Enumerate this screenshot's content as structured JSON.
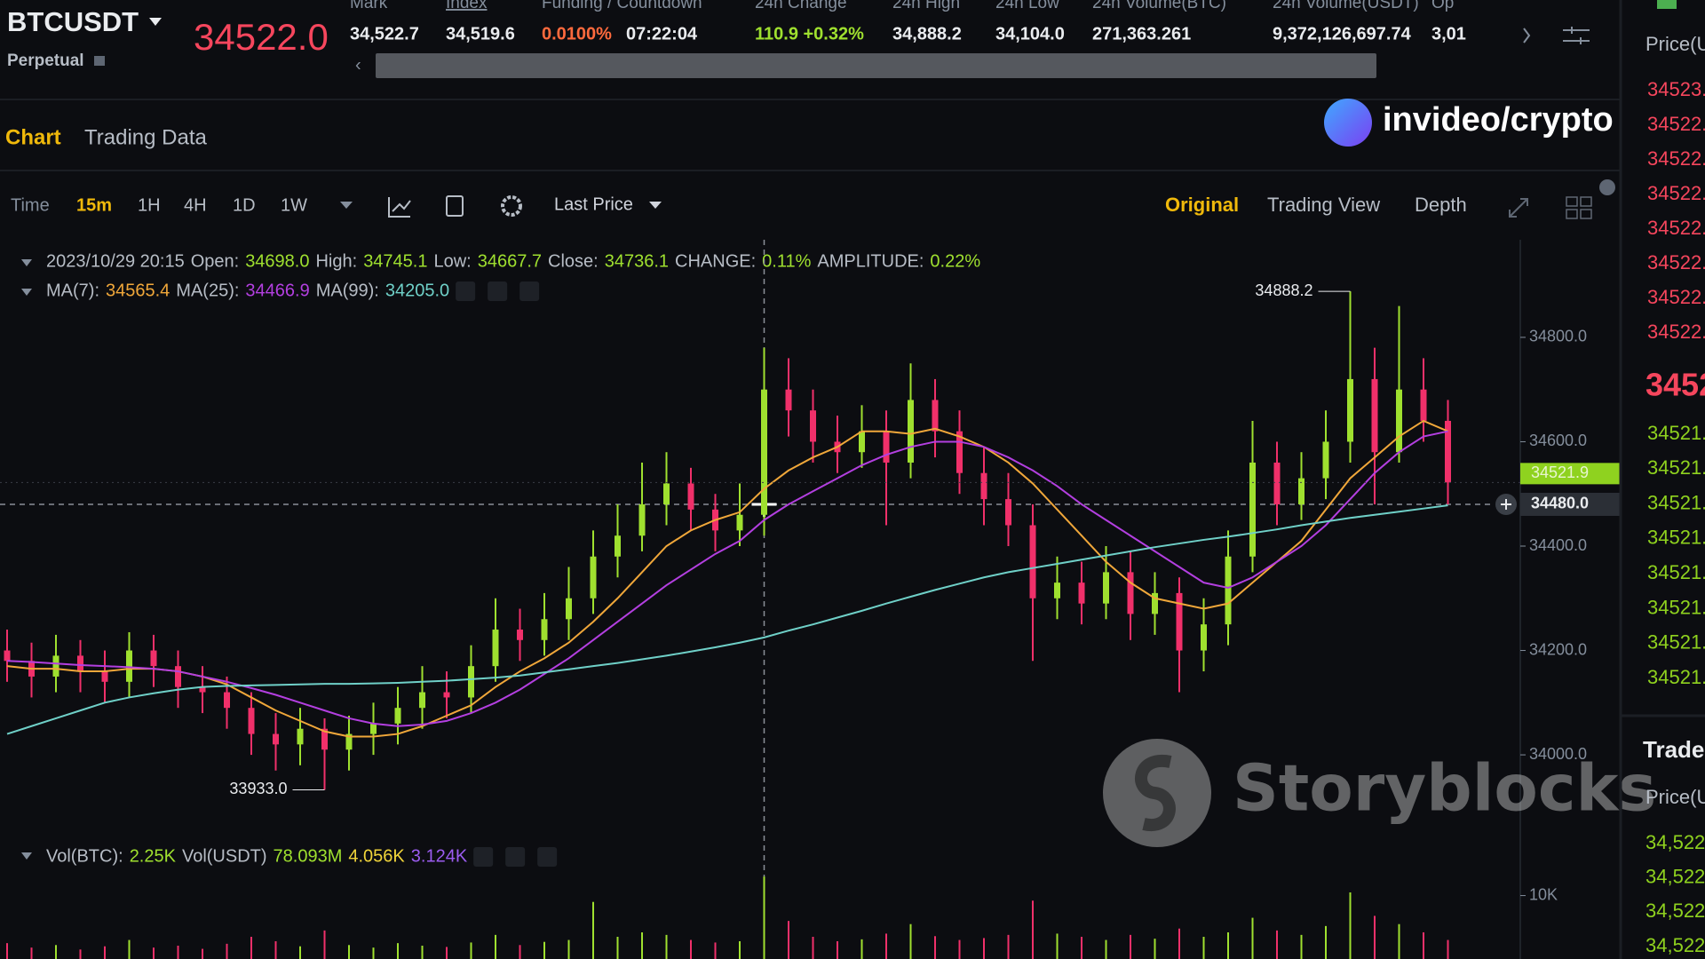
{
  "header": {
    "symbol": "BTCUSDT",
    "contract": "Perpetual",
    "last_price": "34522.0",
    "stats": [
      {
        "label": "Mark",
        "value": "34,522.7"
      },
      {
        "label": "Index",
        "value": "34,519.6"
      },
      {
        "label": "Funding / Countdown",
        "value": "0.0100%",
        "countdown": "07:22:04"
      },
      {
        "label": "24h Change",
        "value": "110.9 +0.32%"
      },
      {
        "label": "24h High",
        "value": "34,888.2"
      },
      {
        "label": "24h Low",
        "value": "34,104.0"
      },
      {
        "label": "24h Volume(BTC)",
        "value": "271,363.261"
      },
      {
        "label": "24h Volume(USDT)",
        "value": "9,372,126,697.74"
      },
      {
        "label": "Op",
        "value": "3,01"
      }
    ]
  },
  "tabs": [
    "Chart",
    "Trading Data"
  ],
  "watermarks": {
    "brand": "invideo/crypto",
    "stock": "Storyblocks"
  },
  "toolbar": {
    "intervals": [
      "Time",
      "15m",
      "1H",
      "4H",
      "1D",
      "1W"
    ],
    "price_type": "Last Price",
    "views": [
      "Original",
      "Trading View",
      "Depth"
    ]
  },
  "legend": {
    "time": "2023/10/29 20:15",
    "value_color": "#9fe02f",
    "fields": [
      {
        "label": "Open:",
        "value": "34698.0"
      },
      {
        "label": "High:",
        "value": "34745.1"
      },
      {
        "label": "Low:",
        "value": "34667.7"
      },
      {
        "label": "Close:",
        "value": "34736.1"
      },
      {
        "label": "CHANGE:",
        "value": "0.11%"
      },
      {
        "label": "AMPLITUDE:",
        "value": "0.22%"
      }
    ],
    "vol": [
      {
        "label": "Vol(BTC):",
        "value": "2.25K",
        "color": "#9fe02f"
      },
      {
        "label": "Vol(USDT)",
        "value": "78.093M",
        "color": "#9fe02f"
      },
      {
        "value": "4.056K",
        "color": "#f0d43a"
      },
      {
        "value": "3.124K",
        "color": "#9b5cf0"
      }
    ]
  },
  "chart_data": {
    "type": "candlestick",
    "up_color": "#9fe02f",
    "down_color": "#f0306a",
    "open": [
      34200,
      34180,
      34150,
      34190,
      34160,
      34140,
      34200,
      34170,
      34130,
      34120,
      34090,
      34040,
      34020,
      34050,
      34010,
      34040,
      34060,
      34090,
      34120,
      34110,
      34170,
      34240,
      34220,
      34260,
      34300,
      34380,
      34420,
      34480,
      34520,
      34470,
      34430,
      34460,
      34700,
      34660,
      34600,
      34580,
      34620,
      34560,
      34680,
      34620,
      34540,
      34490,
      34440,
      34300,
      34330,
      34290,
      34350,
      34270,
      34310,
      34200,
      34250,
      34380,
      34560,
      34480,
      34530,
      34600,
      34720,
      34580,
      34700,
      34640
    ],
    "high": [
      34240,
      34215,
      34230,
      34220,
      34200,
      34235,
      34230,
      34200,
      34170,
      34150,
      34120,
      34080,
      34090,
      34070,
      34075,
      34100,
      34130,
      34170,
      34160,
      34210,
      34300,
      34280,
      34310,
      34360,
      34430,
      34480,
      34560,
      34580,
      34550,
      34500,
      34520,
      34780,
      34760,
      34700,
      34650,
      34670,
      34660,
      34750,
      34720,
      34660,
      34590,
      34540,
      34480,
      34380,
      34370,
      34400,
      34390,
      34350,
      34340,
      34300,
      34430,
      34640,
      34600,
      34580,
      34660,
      34888.2,
      34780,
      34860,
      34760,
      34680
    ],
    "low": [
      34140,
      34110,
      34120,
      34120,
      34100,
      34110,
      34130,
      34090,
      34080,
      34050,
      34000,
      33970,
      33980,
      33933,
      33970,
      34000,
      34020,
      34050,
      34070,
      34080,
      34140,
      34180,
      34190,
      34220,
      34270,
      34340,
      34390,
      34440,
      34430,
      34390,
      34400,
      34420,
      34610,
      34560,
      34540,
      34550,
      34440,
      34530,
      34570,
      34500,
      34440,
      34400,
      34180,
      34260,
      34250,
      34260,
      34220,
      34230,
      34120,
      34160,
      34210,
      34350,
      34440,
      34450,
      34490,
      34560,
      34480,
      34560,
      34600,
      34480
    ],
    "close": [
      34180,
      34150,
      34190,
      34160,
      34140,
      34200,
      34170,
      34130,
      34120,
      34090,
      34040,
      34020,
      34050,
      34010,
      34040,
      34060,
      34090,
      34120,
      34110,
      34170,
      34240,
      34220,
      34260,
      34300,
      34380,
      34420,
      34480,
      34520,
      34470,
      34430,
      34460,
      34700,
      34660,
      34600,
      34580,
      34620,
      34560,
      34680,
      34620,
      34540,
      34490,
      34440,
      34300,
      34330,
      34290,
      34350,
      34270,
      34310,
      34200,
      34250,
      34380,
      34560,
      34480,
      34530,
      34600,
      34720,
      34580,
      34700,
      34640,
      34522
    ],
    "series": [
      {
        "name": "MA(7):",
        "legend_value": "34565.4",
        "color": "#f0a73a",
        "values": [
          34170,
          34165,
          34165,
          34160,
          34160,
          34165,
          34165,
          34160,
          34150,
          34135,
          34110,
          34085,
          34065,
          34045,
          34035,
          34035,
          34040,
          34055,
          34075,
          34095,
          34130,
          34160,
          34185,
          34215,
          34255,
          34300,
          34350,
          34400,
          34430,
          34450,
          34465,
          34510,
          34545,
          34570,
          34590,
          34620,
          34620,
          34615,
          34625,
          34610,
          34590,
          34560,
          34520,
          34470,
          34420,
          34370,
          34330,
          34300,
          34290,
          34280,
          34290,
          34330,
          34370,
          34410,
          34470,
          34530,
          34570,
          34610,
          34640,
          34620
        ]
      },
      {
        "name": "MA(25):",
        "legend_value": "34466.9",
        "color": "#b33fe0",
        "values": [
          34180,
          34178,
          34175,
          34172,
          34170,
          34168,
          34165,
          34160,
          34150,
          34140,
          34128,
          34115,
          34100,
          34085,
          34070,
          34060,
          34055,
          34058,
          34065,
          34080,
          34100,
          34125,
          34155,
          34185,
          34220,
          34255,
          34290,
          34325,
          34355,
          34385,
          34410,
          34450,
          34480,
          34505,
          34530,
          34555,
          34575,
          34590,
          34600,
          34600,
          34590,
          34570,
          34545,
          34515,
          34480,
          34450,
          34420,
          34390,
          34360,
          34330,
          34320,
          34340,
          34370,
          34400,
          34440,
          34490,
          34540,
          34580,
          34610,
          34620
        ]
      },
      {
        "name": "MA(99):",
        "legend_value": "34205.0",
        "color": "#6fd0c8",
        "values": [
          34040,
          34055,
          34070,
          34085,
          34100,
          34110,
          34118,
          34125,
          34130,
          34132,
          34133,
          34134,
          34135,
          34136,
          34136,
          34137,
          34138,
          34140,
          34142,
          34145,
          34148,
          34152,
          34158,
          34164,
          34170,
          34176,
          34183,
          34190,
          34198,
          34206,
          34215,
          34225,
          34238,
          34250,
          34263,
          34276,
          34290,
          34303,
          34316,
          34328,
          34340,
          34350,
          34358,
          34366,
          34374,
          34382,
          34390,
          34398,
          34405,
          34412,
          34418,
          34425,
          34432,
          34440,
          34447,
          34454,
          34460,
          34466,
          34472,
          34478
        ]
      }
    ],
    "ylim": [
      33830,
      34970
    ],
    "yticks": [
      {
        "value": 34000,
        "label": "34000.0"
      },
      {
        "value": 34200,
        "label": "34200.0"
      },
      {
        "value": 34400,
        "label": "34400.0"
      },
      {
        "value": 34600,
        "label": "34600.0"
      },
      {
        "value": 34800,
        "label": "34800.0"
      }
    ],
    "annotations": [
      {
        "text": "34888.2",
        "value": 34888.2
      },
      {
        "text": "33933.0",
        "value": 33933
      }
    ],
    "last_price_tag": {
      "value": 34521.9,
      "label": "34521.9",
      "color": "#8fd21f"
    },
    "crosshair": {
      "value": 34480,
      "label": "34480.0"
    },
    "volume": {
      "values": [
        2500,
        1800,
        2200,
        1500,
        2000,
        3000,
        1800,
        2100,
        1600,
        2400,
        3500,
        2800,
        2000,
        4500,
        2200,
        1800,
        2500,
        2100,
        1900,
        2600,
        3800,
        2200,
        2700,
        3000,
        9000,
        3500,
        4200,
        3800,
        3000,
        2600,
        2800,
        13000,
        6000,
        3500,
        2800,
        3100,
        4000,
        5500,
        3600,
        3000,
        3300,
        3800,
        9200,
        4000,
        3500,
        3000,
        3800,
        3200,
        4800,
        3500,
        4200,
        6500,
        4500,
        3800,
        5200,
        10500,
        6800,
        5500,
        4200,
        3000
      ],
      "ylim": [
        0,
        14000
      ],
      "yticks": [
        {
          "value": 10000,
          "label": "10K"
        }
      ]
    }
  },
  "order_book": {
    "header": "Price(U",
    "asks": [
      "34523.",
      "34522.",
      "34522.",
      "34522.",
      "34522.",
      "34522.",
      "34522.",
      "34522."
    ],
    "last": "3452",
    "bids": [
      "34521.",
      "34521.",
      "34521.",
      "34521.",
      "34521.",
      "34521.",
      "34521.",
      "34521."
    ]
  },
  "trades": {
    "title": "Trades",
    "header": "Price(U",
    "prices": [
      "34,522.",
      "34,522.",
      "34,522.",
      "34,522."
    ]
  }
}
